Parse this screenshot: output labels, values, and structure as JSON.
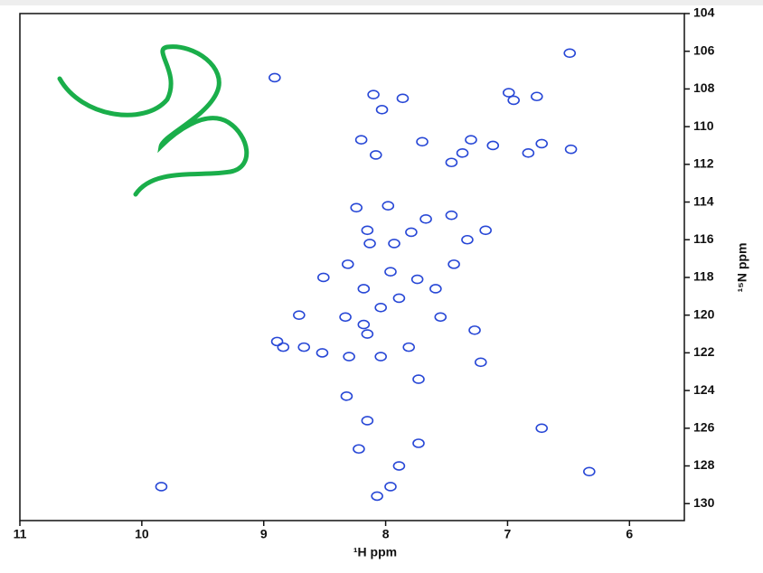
{
  "chart_data": {
    "type": "scatter",
    "xlabel": "¹H ppm",
    "ylabel": "¹⁵N ppm",
    "xlim": [
      11,
      5.55
    ],
    "ylim": [
      104,
      130.9
    ],
    "xticks": [
      11,
      10,
      9,
      8,
      7,
      6
    ],
    "yticks": [
      104,
      106,
      108,
      110,
      112,
      114,
      116,
      118,
      120,
      122,
      124,
      126,
      128,
      130
    ],
    "color": "#2747d6",
    "x": [
      8.91,
      8.03,
      7.86,
      8.1,
      8.2,
      7.7,
      7.37,
      7.46,
      7.3,
      7.12,
      6.99,
      6.95,
      6.76,
      6.72,
      6.83,
      6.48,
      8.08,
      8.24,
      7.98,
      7.67,
      7.79,
      7.93,
      8.13,
      8.15,
      7.46,
      7.18,
      7.33,
      7.44,
      8.31,
      8.04,
      8.33,
      8.18,
      7.89,
      7.74,
      7.59,
      8.15,
      7.81,
      8.3,
      8.04,
      8.18,
      7.96,
      8.51,
      8.71,
      8.89,
      8.84,
      8.67,
      8.52,
      7.27,
      7.55,
      8.32,
      8.15,
      6.72,
      7.89,
      7.73,
      8.22,
      8.07,
      7.96,
      9.84,
      6.33,
      6.49,
      7.22,
      7.73
    ],
    "values": [
      107.4,
      109.1,
      108.5,
      108.3,
      110.7,
      110.8,
      111.4,
      111.9,
      110.7,
      111.0,
      108.2,
      108.6,
      108.4,
      110.9,
      111.4,
      111.2,
      111.5,
      114.3,
      114.2,
      114.9,
      115.6,
      116.2,
      116.2,
      115.5,
      114.7,
      115.5,
      116.0,
      117.3,
      117.3,
      119.6,
      120.1,
      120.5,
      119.1,
      118.1,
      118.6,
      121.0,
      121.7,
      122.2,
      122.2,
      118.6,
      117.7,
      118.0,
      120.0,
      121.4,
      121.7,
      121.7,
      122.0,
      120.8,
      120.1,
      124.3,
      125.6,
      126.0,
      128.0,
      126.8,
      127.1,
      129.6,
      129.1,
      129.1,
      128.3,
      106.1,
      122.5,
      123.4
    ]
  }
}
